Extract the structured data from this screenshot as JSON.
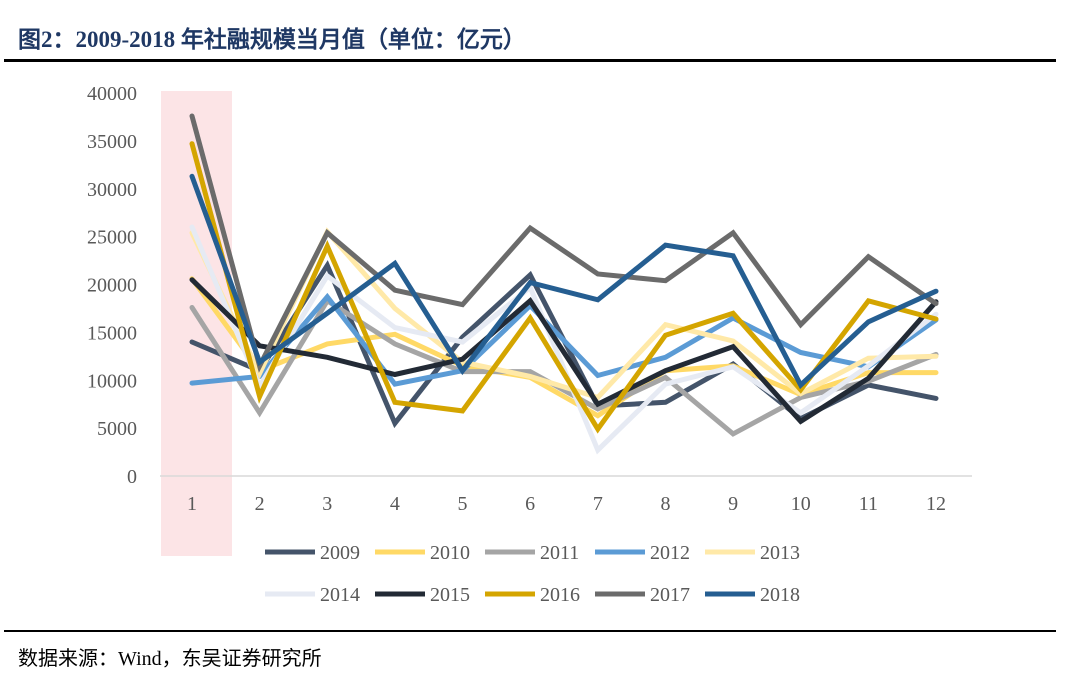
{
  "title": "图2：2009-2018 年社融规模当月值（单位：亿元）",
  "source": "数据来源：Wind，东吴证券研究所",
  "chart_data": {
    "type": "line",
    "title": "图2：2009-2018 年社融规模当月值（单位：亿元）",
    "xlabel": "",
    "ylabel": "",
    "x": [
      1,
      2,
      3,
      4,
      5,
      6,
      7,
      8,
      9,
      10,
      11,
      12
    ],
    "xticks": [
      "1",
      "2",
      "3",
      "4",
      "5",
      "6",
      "7",
      "8",
      "9",
      "10",
      "11",
      "12"
    ],
    "yticks": [
      "0",
      "5000",
      "10000",
      "15000",
      "20000",
      "25000",
      "30000",
      "35000",
      "40000"
    ],
    "ylim": [
      0,
      40000
    ],
    "grid": false,
    "legend": "bottom",
    "highlight": {
      "x": 1,
      "color": "#fce4e6"
    },
    "series": [
      {
        "name": "2009",
        "color": "#44546a",
        "values": [
          14000,
          11000,
          22000,
          5500,
          14500,
          21000,
          7300,
          7700,
          11700,
          6000,
          9500,
          8100
        ]
      },
      {
        "name": "2010",
        "color": "#ffd966",
        "values": [
          20600,
          11000,
          13800,
          14800,
          11500,
          10300,
          6300,
          11000,
          11500,
          8500,
          10800,
          10800
        ]
      },
      {
        "name": "2011",
        "color": "#a5a5a5",
        "values": [
          17600,
          6600,
          18300,
          13800,
          10900,
          10900,
          7000,
          10300,
          4400,
          8200,
          9900,
          12700
        ]
      },
      {
        "name": "2012",
        "color": "#5b9bd5",
        "values": [
          9700,
          10400,
          18700,
          9600,
          11000,
          17800,
          10500,
          12400,
          16500,
          12900,
          11400,
          16300
        ]
      },
      {
        "name": "2013",
        "color": "#ffe9a8",
        "values": [
          25400,
          10700,
          25500,
          17500,
          11900,
          10400,
          8200,
          15800,
          14100,
          8600,
          12300,
          12500
        ]
      },
      {
        "name": "2014",
        "color": "#e6eaf3",
        "values": [
          26000,
          9400,
          20900,
          15500,
          14000,
          19700,
          2700,
          9600,
          11400,
          6600,
          11500,
          16900
        ]
      },
      {
        "name": "2015",
        "color": "#222a35",
        "values": [
          20500,
          13600,
          12400,
          10600,
          12200,
          18300,
          7500,
          11000,
          13500,
          5700,
          10200,
          18200
        ]
      },
      {
        "name": "2016",
        "color": "#d4a500",
        "values": [
          34700,
          8300,
          24000,
          7700,
          6800,
          16500,
          4900,
          14700,
          17000,
          9000,
          18300,
          16400
        ]
      },
      {
        "name": "2017",
        "color": "#6b6b6b",
        "values": [
          37600,
          11500,
          25400,
          19400,
          17900,
          25900,
          21100,
          20400,
          25400,
          15800,
          22900,
          18000
        ]
      },
      {
        "name": "2018",
        "color": "#255e91",
        "values": [
          31300,
          11900,
          17000,
          22200,
          11000,
          20200,
          18400,
          24100,
          23000,
          9500,
          16100,
          19300
        ]
      }
    ]
  }
}
